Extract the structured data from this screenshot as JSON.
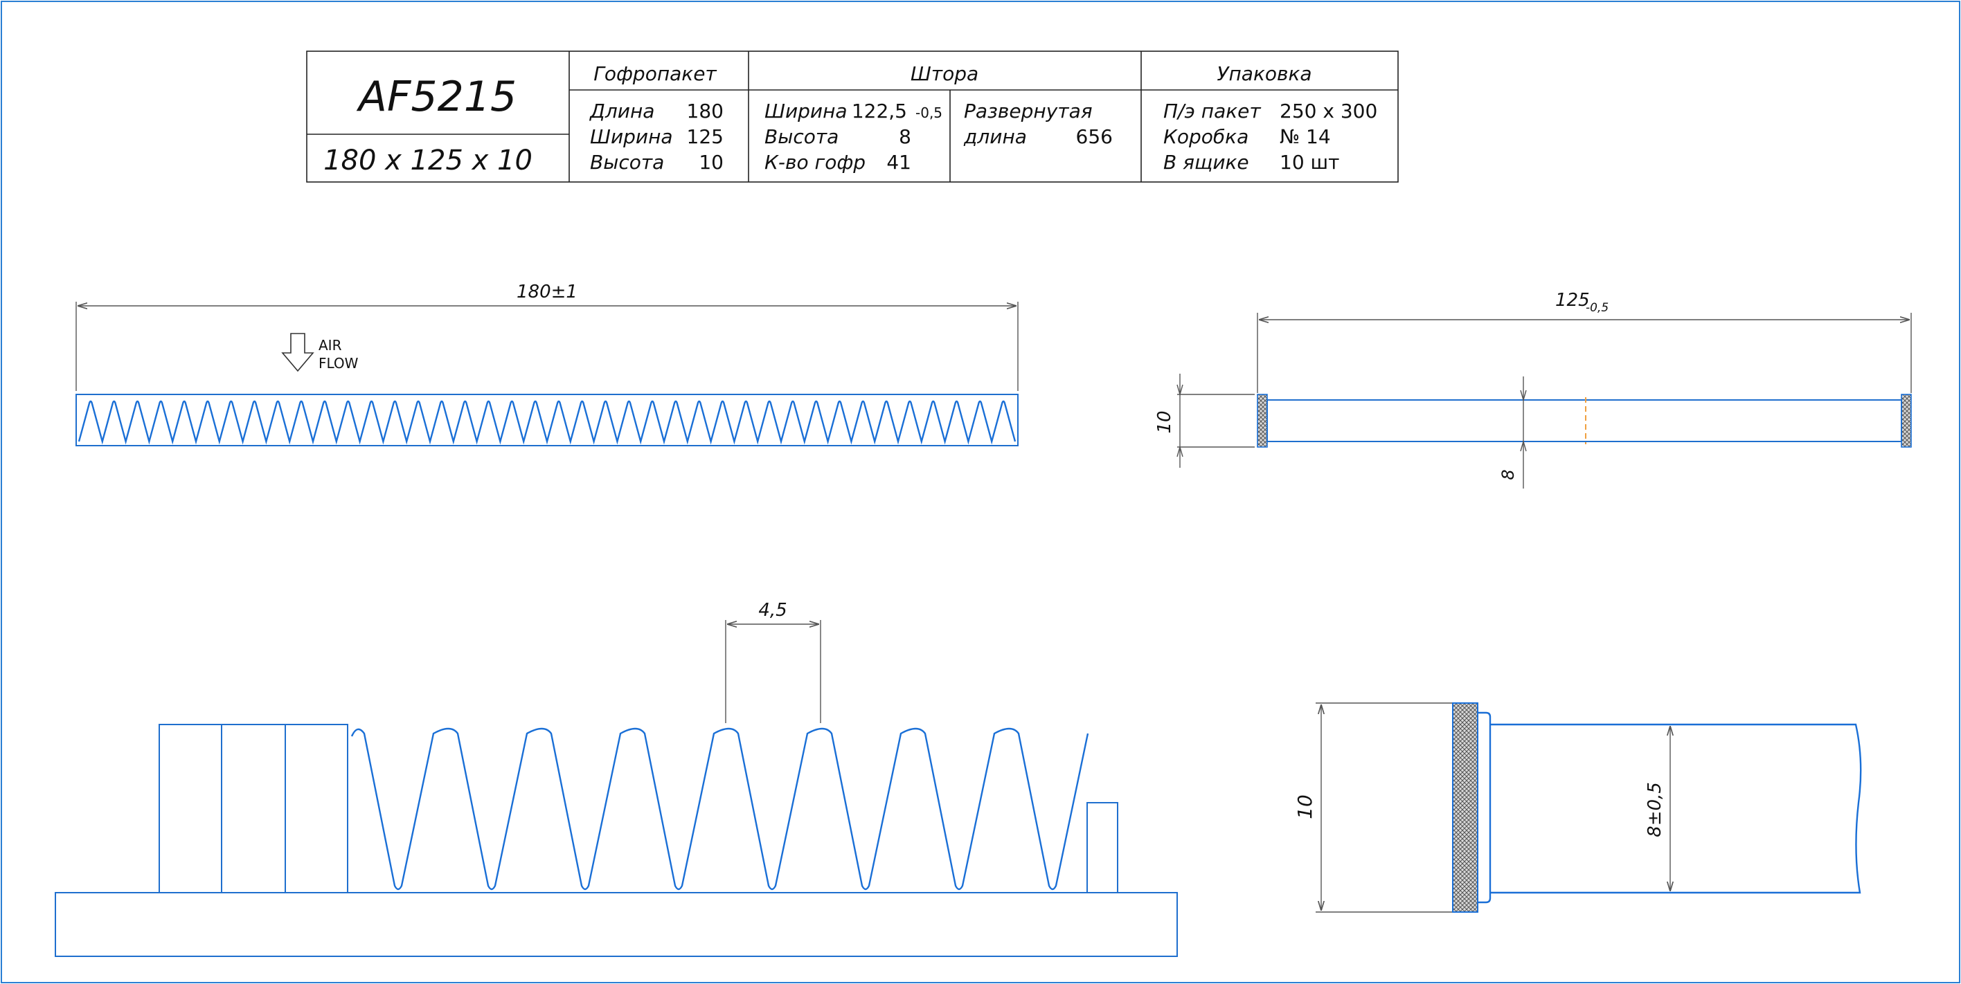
{
  "title_block": {
    "model": "AF5215",
    "size": "180 x 125 x 10",
    "sections": {
      "pack": {
        "header": "Гофропакет",
        "rows": [
          {
            "label": "Длина",
            "value": "180"
          },
          {
            "label": "Ширина",
            "value": "125"
          },
          {
            "label": "Высота",
            "value": "10"
          }
        ]
      },
      "curtain": {
        "header": "Штора",
        "rows": [
          {
            "label": "Ширина",
            "value": "122,5",
            "tol": "-0,5"
          },
          {
            "label": "Высота",
            "value": "8"
          },
          {
            "label": "К-во гофр",
            "value": "41"
          }
        ],
        "unfolded_label_1": "Развернутая",
        "unfolded_label_2": "длина",
        "unfolded_value": "656"
      },
      "packaging": {
        "header": "Упаковка",
        "rows": [
          {
            "label": "П/э пакет",
            "value": "250 x 300"
          },
          {
            "label": "Коробка",
            "value": "№ 14"
          },
          {
            "label": "В ящике",
            "value": "10 шт"
          }
        ]
      }
    }
  },
  "views": {
    "front": {
      "length_dim": "180±1",
      "airflow_1": "AIR",
      "airflow_2": "FLOW"
    },
    "side": {
      "width_dim": "125",
      "width_tol": "-0,5",
      "height_dim": "10",
      "curtain_dim": "8"
    },
    "detail_pleat": {
      "pitch_dim": "4,5"
    },
    "detail_edge": {
      "height_dim": "10",
      "curtain_dim": "8±0,5"
    }
  },
  "colors": {
    "line": "#1a6fd6",
    "frame": "#2a7fd4",
    "accent": "#f0a040"
  }
}
